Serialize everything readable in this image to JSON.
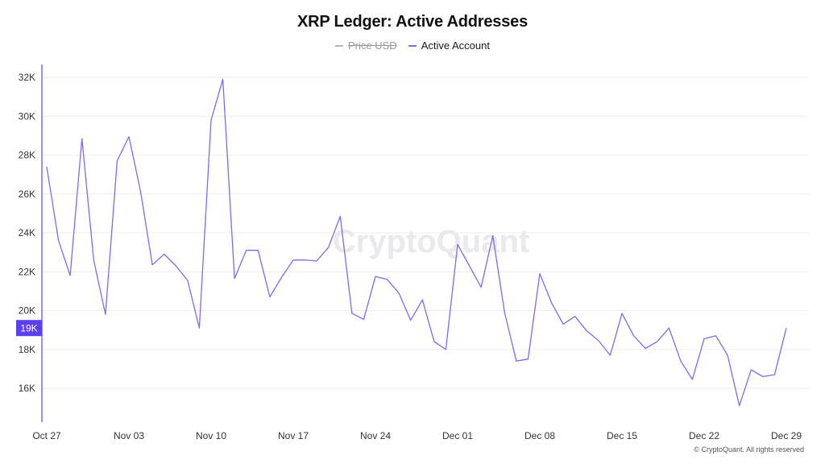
{
  "title": "XRP Ledger: Active Addresses",
  "legend": [
    {
      "label": "Price USD",
      "color": "#9a9a9a",
      "disabled": true
    },
    {
      "label": "Active Account",
      "color": "#7b6cf0",
      "disabled": false
    }
  ],
  "watermark": "CryptoQuant",
  "footer": "© CryptoQuant. All rights reserved",
  "current_value_badge": "19K",
  "colors": {
    "line": "#7b6cf0",
    "badge": "#5b3ff0",
    "axis": "#7b6cf0",
    "grid": "#eeeeee"
  },
  "chart_data": {
    "type": "line",
    "title": "XRP Ledger: Active Addresses",
    "xlabel": "",
    "ylabel": "",
    "ylim": [
      14700,
      33000
    ],
    "y_ticks": [
      16000,
      18000,
      20000,
      22000,
      24000,
      26000,
      28000,
      30000,
      32000
    ],
    "y_tick_labels": [
      "16K",
      "18K",
      "20K",
      "22K",
      "24K",
      "26K",
      "28K",
      "30K",
      "32K"
    ],
    "x_tick_labels": [
      "Oct 27",
      "Nov 03",
      "Nov 10",
      "Nov 17",
      "Nov 24",
      "Dec 01",
      "Dec 08",
      "Dec 15",
      "Dec 22",
      "Dec 29"
    ],
    "grid": true,
    "legend_position": "top-center",
    "series": [
      {
        "name": "Active Account",
        "x": [
          "Oct 27",
          "Oct 28",
          "Oct 29",
          "Oct 30",
          "Oct 31",
          "Nov 01",
          "Nov 02",
          "Nov 03",
          "Nov 04",
          "Nov 05",
          "Nov 06",
          "Nov 07",
          "Nov 08",
          "Nov 09",
          "Nov 10",
          "Nov 11",
          "Nov 12",
          "Nov 13",
          "Nov 14",
          "Nov 15",
          "Nov 16",
          "Nov 17",
          "Nov 18",
          "Nov 19",
          "Nov 20",
          "Nov 21",
          "Nov 22",
          "Nov 23",
          "Nov 24",
          "Nov 25",
          "Nov 26",
          "Nov 27",
          "Nov 28",
          "Nov 29",
          "Nov 30",
          "Dec 01",
          "Dec 02",
          "Dec 03",
          "Dec 04",
          "Dec 05",
          "Dec 06",
          "Dec 07",
          "Dec 08",
          "Dec 09",
          "Dec 10",
          "Dec 11",
          "Dec 12",
          "Dec 13",
          "Dec 14",
          "Dec 15",
          "Dec 16",
          "Dec 17",
          "Dec 18",
          "Dec 19",
          "Dec 20",
          "Dec 21",
          "Dec 22",
          "Dec 23",
          "Dec 24",
          "Dec 25",
          "Dec 26",
          "Dec 27",
          "Dec 28",
          "Dec 29"
        ],
        "values": [
          27400,
          23600,
          21800,
          28850,
          22600,
          19800,
          27700,
          28950,
          26100,
          22350,
          22900,
          22300,
          21550,
          19100,
          29800,
          31900,
          21650,
          23100,
          23100,
          20700,
          21700,
          22600,
          22600,
          22550,
          23250,
          24850,
          19850,
          19550,
          21750,
          21600,
          20900,
          19500,
          20550,
          18400,
          18000,
          23400,
          22300,
          21200,
          23850,
          19900,
          17400,
          17500,
          21900,
          20400,
          19300,
          19700,
          18950,
          18450,
          17700,
          19850,
          18700,
          18050,
          18400,
          19100,
          17400,
          16450,
          18550,
          18700,
          17700,
          15100,
          16950,
          16600,
          16700,
          19100
        ]
      }
    ]
  }
}
